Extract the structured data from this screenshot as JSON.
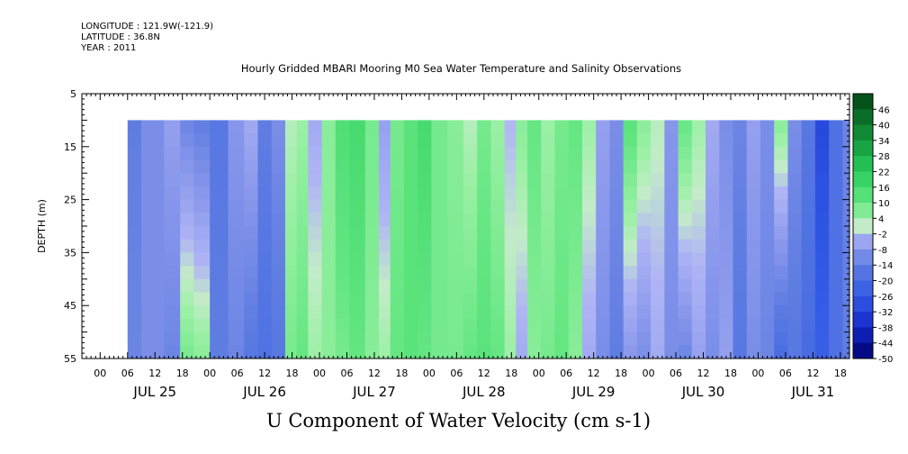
{
  "header": {
    "longitude": "LONGITUDE : 121.9W(-121.9)",
    "latitude": "LATITUDE : 36.8N",
    "year": "YEAR : 2011"
  },
  "chart_data": {
    "type": "heatmap",
    "title": "U Component of Water Velocity (cm s-1)",
    "subtitle": "Hourly Gridded MBARI Mooring M0 Sea Water Temperature and Salinity Observations",
    "ylabel": "DEPTH (m)",
    "y_ticks": [
      "5",
      "15",
      "25",
      "35",
      "45",
      "55"
    ],
    "y_range": [
      5,
      55
    ],
    "y_inverted": true,
    "data_depth_range": [
      10,
      55
    ],
    "x_days": [
      "JUL 25",
      "JUL 26",
      "JUL 27",
      "JUL 28",
      "JUL 29",
      "JUL 30",
      "JUL 31"
    ],
    "x_hour_labels": [
      "00",
      "06",
      "12",
      "18"
    ],
    "x_range_hours": [
      -4,
      164
    ],
    "data_start_hour": 6,
    "data_end_hour": 164,
    "colorbar": {
      "levels": [
        "46",
        "40",
        "34",
        "28",
        "22",
        "16",
        "10",
        "4",
        "-2",
        "-8",
        "-14",
        "-20",
        "-26",
        "-32",
        "-38",
        "-44",
        "-50"
      ],
      "min": -50,
      "max": 52
    },
    "columns_u_by_hour": [
      {
        "t": 6,
        "top": -14,
        "bottom": -12
      },
      {
        "t": 12,
        "top": -10,
        "bottom": -10
      },
      {
        "t": 16,
        "top": -6,
        "bottom": -12
      },
      {
        "t": 19,
        "top": -12,
        "bottom": 8
      },
      {
        "t": 22,
        "top": -14,
        "bottom": 6
      },
      {
        "t": 26,
        "top": -16,
        "bottom": -14
      },
      {
        "t": 30,
        "top": -8,
        "bottom": -12
      },
      {
        "t": 33,
        "top": -4,
        "bottom": -16
      },
      {
        "t": 36,
        "top": -14,
        "bottom": -18
      },
      {
        "t": 39,
        "top": -10,
        "bottom": -16
      },
      {
        "t": 42,
        "top": 2,
        "bottom": 8
      },
      {
        "t": 44,
        "top": 4,
        "bottom": 10
      },
      {
        "t": 47,
        "top": -4,
        "bottom": 4
      },
      {
        "t": 50,
        "top": 6,
        "bottom": 6
      },
      {
        "t": 53,
        "top": 14,
        "bottom": 8
      },
      {
        "t": 56,
        "top": 16,
        "bottom": 10
      },
      {
        "t": 60,
        "top": 8,
        "bottom": 6
      },
      {
        "t": 62,
        "top": -6,
        "bottom": 4
      },
      {
        "t": 65,
        "top": 8,
        "bottom": 10
      },
      {
        "t": 68,
        "top": 12,
        "bottom": 12
      },
      {
        "t": 71,
        "top": 16,
        "bottom": 10
      },
      {
        "t": 74,
        "top": 8,
        "bottom": 8
      },
      {
        "t": 78,
        "top": 6,
        "bottom": 8
      },
      {
        "t": 81,
        "top": 2,
        "bottom": 10
      },
      {
        "t": 84,
        "top": 8,
        "bottom": 12
      },
      {
        "t": 87,
        "top": 4,
        "bottom": 10
      },
      {
        "t": 90,
        "top": -2,
        "bottom": 4
      },
      {
        "t": 92,
        "top": 6,
        "bottom": -4
      },
      {
        "t": 95,
        "top": 10,
        "bottom": 6
      },
      {
        "t": 98,
        "top": 4,
        "bottom": 8
      },
      {
        "t": 101,
        "top": 8,
        "bottom": 10
      },
      {
        "t": 104,
        "top": 10,
        "bottom": 6
      },
      {
        "t": 107,
        "top": 4,
        "bottom": -4
      },
      {
        "t": 110,
        "top": -6,
        "bottom": -10
      },
      {
        "t": 113,
        "top": -10,
        "bottom": -14
      },
      {
        "t": 116,
        "top": 12,
        "bottom": -8
      },
      {
        "t": 119,
        "top": 6,
        "bottom": -10
      },
      {
        "t": 122,
        "top": 2,
        "bottom": -4
      },
      {
        "t": 125,
        "top": -8,
        "bottom": -10
      },
      {
        "t": 128,
        "top": 10,
        "bottom": -12
      },
      {
        "t": 131,
        "top": 4,
        "bottom": -6
      },
      {
        "t": 134,
        "top": -4,
        "bottom": -10
      },
      {
        "t": 137,
        "top": -10,
        "bottom": -6
      },
      {
        "t": 140,
        "top": -12,
        "bottom": -16
      },
      {
        "t": 143,
        "top": -6,
        "bottom": -10
      },
      {
        "t": 146,
        "top": -10,
        "bottom": -12
      },
      {
        "t": 149,
        "top": 6,
        "bottom": -20
      },
      {
        "t": 152,
        "top": -10,
        "bottom": -16
      },
      {
        "t": 155,
        "top": -16,
        "bottom": -20
      },
      {
        "t": 158,
        "top": -30,
        "bottom": -24
      },
      {
        "t": 161,
        "top": -18,
        "bottom": -18
      },
      {
        "t": 164,
        "top": -12,
        "bottom": -14
      }
    ]
  }
}
